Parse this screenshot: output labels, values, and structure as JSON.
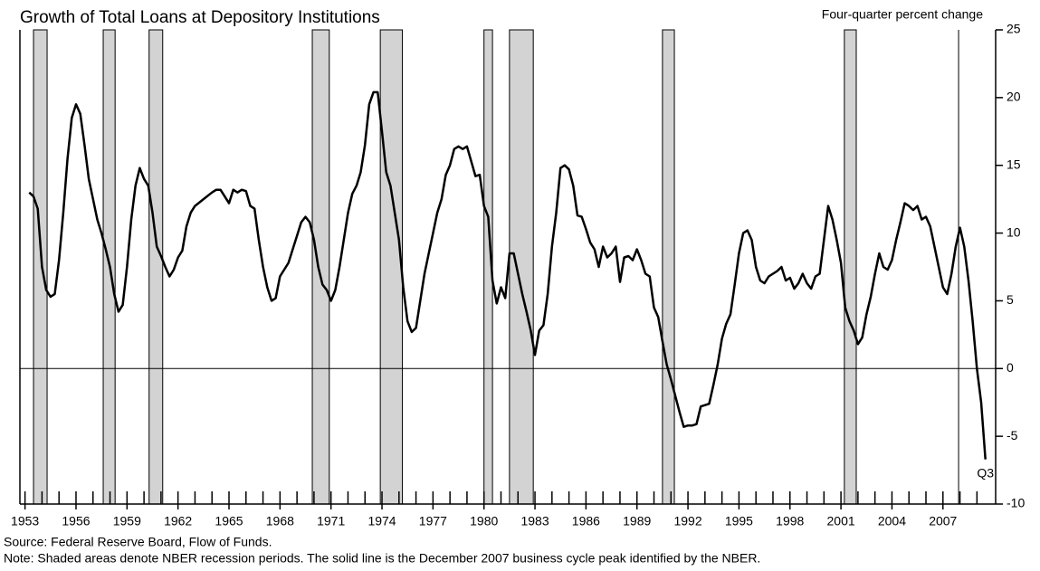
{
  "chart_data": {
    "type": "line",
    "title": "Growth of Total Loans at Depository Institutions",
    "ylabel": "Four-quarter percent change",
    "notes": [
      "Source: Federal Reserve Board, Flow of Funds.",
      "Note: Shaded areas denote NBER recession periods.  The solid line is the December 2007 business cycle peak identified by the NBER."
    ],
    "annotation": "Q3",
    "xlim": [
      1952.7,
      2010.1
    ],
    "xticks": [
      1953,
      1956,
      1959,
      1962,
      1965,
      1968,
      1971,
      1974,
      1977,
      1980,
      1983,
      1986,
      1989,
      1992,
      1995,
      1998,
      2001,
      2004,
      2007
    ],
    "xminorticks": [
      1953,
      1954,
      1955,
      1956,
      1957,
      1958,
      1959,
      1960,
      1961,
      1962,
      1963,
      1964,
      1965,
      1966,
      1967,
      1968,
      1969,
      1970,
      1971,
      1972,
      1973,
      1974,
      1975,
      1976,
      1977,
      1978,
      1979,
      1980,
      1981,
      1982,
      1983,
      1984,
      1985,
      1986,
      1987,
      1988,
      1989,
      1990,
      1991,
      1992,
      1993,
      1994,
      1995,
      1996,
      1997,
      1998,
      1999,
      2000,
      2001,
      2002,
      2003,
      2004,
      2005,
      2006,
      2007,
      2008,
      2009
    ],
    "ylim": [
      -10,
      25
    ],
    "yticks": [
      -10,
      -5,
      0,
      5,
      10,
      15,
      20,
      25
    ],
    "reference_line": 0,
    "recessions": [
      [
        1953.5,
        1954.3
      ],
      [
        1957.6,
        1958.3
      ],
      [
        1960.3,
        1961.1
      ],
      [
        1969.9,
        1970.9
      ],
      [
        1973.9,
        1975.2
      ],
      [
        1980.0,
        1980.5
      ],
      [
        1981.5,
        1982.9
      ],
      [
        1990.5,
        1991.2
      ],
      [
        2001.2,
        2001.9
      ]
    ],
    "recession_color": "#d3d3d3",
    "peak_line": 2007.92,
    "color": "#000000",
    "x": [
      1953.25,
      1953.5,
      1953.75,
      1954.0,
      1954.25,
      1954.5,
      1954.75,
      1955.0,
      1955.25,
      1955.5,
      1955.75,
      1956.0,
      1956.25,
      1956.5,
      1956.75,
      1957.0,
      1957.25,
      1957.5,
      1957.75,
      1958.0,
      1958.25,
      1958.5,
      1958.75,
      1959.0,
      1959.25,
      1959.5,
      1959.75,
      1960.0,
      1960.25,
      1960.5,
      1960.75,
      1961.0,
      1961.25,
      1961.5,
      1961.75,
      1962.0,
      1962.25,
      1962.5,
      1962.75,
      1963.0,
      1963.5,
      1964.0,
      1964.25,
      1964.5,
      1964.75,
      1965.0,
      1965.25,
      1965.5,
      1965.75,
      1966.0,
      1966.25,
      1966.5,
      1966.75,
      1967.0,
      1967.25,
      1967.5,
      1967.75,
      1968.0,
      1968.5,
      1968.75,
      1969.0,
      1969.25,
      1969.5,
      1969.75,
      1970.0,
      1970.25,
      1970.5,
      1970.75,
      1971.0,
      1971.25,
      1971.5,
      1971.75,
      1972.0,
      1972.25,
      1972.5,
      1972.75,
      1973.0,
      1973.25,
      1973.5,
      1973.75,
      1974.0,
      1974.25,
      1974.5,
      1974.75,
      1975.0,
      1975.25,
      1975.5,
      1975.75,
      1976.0,
      1976.25,
      1976.5,
      1976.75,
      1977.0,
      1977.25,
      1977.5,
      1977.75,
      1978.0,
      1978.25,
      1978.5,
      1978.75,
      1979.0,
      1979.25,
      1979.5,
      1979.75,
      1980.0,
      1980.25,
      1980.5,
      1980.75,
      1981.0,
      1981.25,
      1981.5,
      1981.75,
      1982.0,
      1982.25,
      1982.5,
      1982.75,
      1983.0,
      1983.25,
      1983.5,
      1983.75,
      1984.0,
      1984.25,
      1984.5,
      1984.75,
      1985.0,
      1985.25,
      1985.5,
      1985.75,
      1986.0,
      1986.25,
      1986.5,
      1986.75,
      1987.0,
      1987.25,
      1987.5,
      1987.75,
      1988.0,
      1988.25,
      1988.5,
      1988.75,
      1989.0,
      1989.25,
      1989.5,
      1989.75,
      1990.0,
      1990.25,
      1990.5,
      1990.75,
      1991.0,
      1991.25,
      1991.5,
      1991.75,
      1992.0,
      1992.25,
      1992.5,
      1992.75,
      1993.0,
      1993.25,
      1993.5,
      1993.75,
      1994.0,
      1994.25,
      1994.5,
      1994.75,
      1995.0,
      1995.25,
      1995.5,
      1995.75,
      1996.0,
      1996.25,
      1996.5,
      1996.75,
      1997.0,
      1997.25,
      1997.5,
      1997.75,
      1998.0,
      1998.25,
      1998.5,
      1998.75,
      1999.0,
      1999.25,
      1999.5,
      1999.75,
      2000.0,
      2000.25,
      2000.5,
      2000.75,
      2001.0,
      2001.25,
      2001.5,
      2001.75,
      2002.0,
      2002.25,
      2002.5,
      2002.75,
      2003.0,
      2003.25,
      2003.5,
      2003.75,
      2004.0,
      2004.25,
      2004.5,
      2004.75,
      2005.0,
      2005.25,
      2005.5,
      2005.75,
      2006.0,
      2006.25,
      2006.5,
      2006.75,
      2007.0,
      2007.25,
      2007.5,
      2007.75,
      2008.0,
      2008.25,
      2008.5,
      2008.75,
      2009.0,
      2009.25,
      2009.5
    ],
    "values": [
      13,
      12.7,
      11.8,
      7.5,
      5.8,
      5.3,
      5.5,
      8,
      11.5,
      15.5,
      18.5,
      19.5,
      18.8,
      16.5,
      14,
      12.5,
      11,
      10,
      8.8,
      7.5,
      5.5,
      4.2,
      4.7,
      7.5,
      11,
      13.5,
      14.8,
      14,
      13.5,
      11.5,
      9,
      8.3,
      7.5,
      6.8,
      7.3,
      8.2,
      8.7,
      10.5,
      11.5,
      12,
      12.5,
      13,
      13.2,
      13.2,
      12.7,
      12.2,
      13.2,
      13.0,
      13.2,
      13.1,
      12,
      11.8,
      9.5,
      7.5,
      6,
      5,
      5.2,
      6.8,
      7.8,
      8.8,
      9.8,
      10.8,
      11.2,
      10.8,
      9.5,
      7.5,
      6.2,
      5.8,
      5,
      5.8,
      7.5,
      9.5,
      11.5,
      12.9,
      13.5,
      14.5,
      16.5,
      19.5,
      20.4,
      20.4,
      17.5,
      14.5,
      13.5,
      11.5,
      9.5,
      6,
      3.5,
      2.7,
      3.0,
      5,
      7,
      8.5,
      10,
      11.5,
      12.5,
      14.3,
      15,
      16.2,
      16.4,
      16.2,
      16.4,
      15.3,
      14.2,
      14.3,
      12,
      11.2,
      6.5,
      4.8,
      6,
      5.2,
      8.5,
      8.5,
      7,
      5.5,
      4.2,
      2.8,
      1,
      2.8,
      3.2,
      5.5,
      9,
      11.5,
      14.8,
      15,
      14.7,
      13.5,
      11.3,
      11.2,
      10.3,
      9.3,
      8.8,
      7.5,
      9,
      8.2,
      8.5,
      9,
      6.4,
      8.2,
      8.3,
      8,
      8.8,
      8,
      7,
      6.8,
      4.5,
      3.8,
      2,
      0.3,
      -0.8,
      -2,
      -3.2,
      -4.3,
      -4.2,
      -4.2,
      -4.1,
      -2.8,
      -2.7,
      -2.6,
      -1.2,
      0.3,
      2.2,
      3.3,
      4,
      6.2,
      8.5,
      10,
      10.2,
      9.5,
      7.5,
      6.5,
      6.3,
      6.8,
      7,
      7.2,
      7.5,
      6.5,
      6.7,
      5.9,
      6.3,
      7,
      6.3,
      5.9,
      6.8,
      7,
      9.5,
      12,
      11,
      9.5,
      7.8,
      4.5,
      3.5,
      2.8,
      1.8,
      2.3,
      4,
      5.3,
      7,
      8.5,
      7.5,
      7.3,
      8,
      9.5,
      10.8,
      12.2,
      12,
      11.7,
      12,
      11,
      11.2,
      10.5,
      9,
      7.5,
      6,
      5.5,
      7,
      9,
      10.4,
      9,
      6.5,
      3.5,
      0,
      -2.5,
      -6.7
    ]
  }
}
